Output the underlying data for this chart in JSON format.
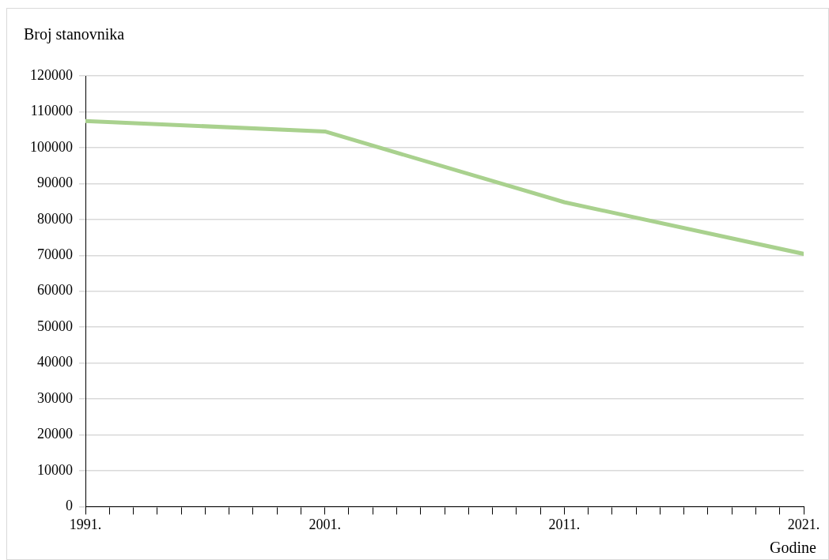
{
  "chart_data": {
    "type": "line",
    "ylabel": "Broj stanovnika",
    "xlabel": "Godine",
    "x": [
      1991,
      2001,
      2011,
      2021
    ],
    "series": [
      {
        "color": "#a9d18e",
        "values": [
          107400,
          104500,
          84800,
          70400
        ]
      }
    ],
    "xlim": [
      1991,
      2021
    ],
    "xticks": [
      {
        "value": 1991,
        "label": "1991."
      },
      {
        "value": 1992,
        "label": null
      },
      {
        "value": 1993,
        "label": null
      },
      {
        "value": 1994,
        "label": null
      },
      {
        "value": 1995,
        "label": null
      },
      {
        "value": 1996,
        "label": null
      },
      {
        "value": 1997,
        "label": null
      },
      {
        "value": 1998,
        "label": null
      },
      {
        "value": 1999,
        "label": null
      },
      {
        "value": 2000,
        "label": null
      },
      {
        "value": 2001,
        "label": "2001."
      },
      {
        "value": 2002,
        "label": null
      },
      {
        "value": 2003,
        "label": null
      },
      {
        "value": 2004,
        "label": null
      },
      {
        "value": 2005,
        "label": null
      },
      {
        "value": 2006,
        "label": null
      },
      {
        "value": 2007,
        "label": null
      },
      {
        "value": 2008,
        "label": null
      },
      {
        "value": 2009,
        "label": null
      },
      {
        "value": 2010,
        "label": null
      },
      {
        "value": 2011,
        "label": "2011."
      },
      {
        "value": 2012,
        "label": null
      },
      {
        "value": 2013,
        "label": null
      },
      {
        "value": 2014,
        "label": null
      },
      {
        "value": 2015,
        "label": null
      },
      {
        "value": 2016,
        "label": null
      },
      {
        "value": 2017,
        "label": null
      },
      {
        "value": 2018,
        "label": null
      },
      {
        "value": 2019,
        "label": null
      },
      {
        "value": 2020,
        "label": null
      },
      {
        "value": 2021,
        "label": "2021."
      }
    ],
    "ylim": [
      0,
      120000
    ],
    "yticks": [
      0,
      10000,
      20000,
      30000,
      40000,
      50000,
      60000,
      70000,
      80000,
      90000,
      100000,
      110000,
      120000
    ],
    "grid": "y",
    "legend": false,
    "marker": "none",
    "line_style": "solid"
  }
}
